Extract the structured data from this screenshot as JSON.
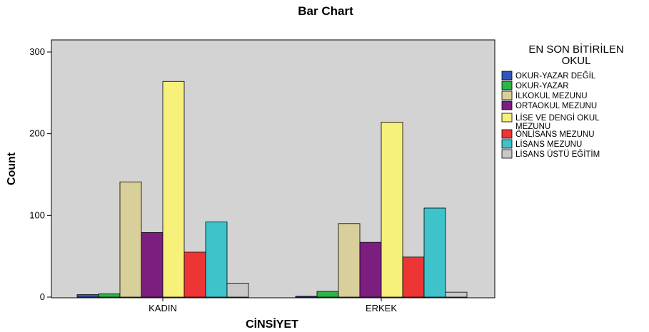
{
  "chart_data": {
    "type": "bar",
    "title": "Bar Chart",
    "xlabel": "CİNSİYET",
    "ylabel": "Count",
    "ylim": [
      0,
      300
    ],
    "yticks": [
      0,
      100,
      200,
      300
    ],
    "categories": [
      "KADIN",
      "ERKEK"
    ],
    "legend_title": "EN SON BİTİRİLEN OKUL",
    "legend_position": "right",
    "grid": false,
    "series": [
      {
        "name": "OKUR-YAZAR DEĞİL",
        "color": "#3355bb",
        "values": [
          3,
          1
        ]
      },
      {
        "name": "OKUR-YAZAR",
        "color": "#2db34a",
        "values": [
          4,
          7
        ]
      },
      {
        "name": "İLKOKUL MEZUNU",
        "color": "#d8cf9a",
        "values": [
          141,
          90
        ]
      },
      {
        "name": "ORTAOKUL MEZUNU",
        "color": "#7b1e80",
        "values": [
          79,
          67
        ]
      },
      {
        "name": "LİSE VE DENGİ OKUL MEZUNU",
        "color": "#f7f07a",
        "values": [
          264,
          214
        ]
      },
      {
        "name": "ÖNLİSANS MEZUNU",
        "color": "#ee3535",
        "values": [
          55,
          49
        ]
      },
      {
        "name": "LİSANS MEZUNU",
        "color": "#3fc3cb",
        "values": [
          92,
          109
        ]
      },
      {
        "name": "LİSANS ÜSTÜ EĞİTİM",
        "color": "#c8c8c8",
        "values": [
          17,
          6
        ]
      }
    ]
  }
}
